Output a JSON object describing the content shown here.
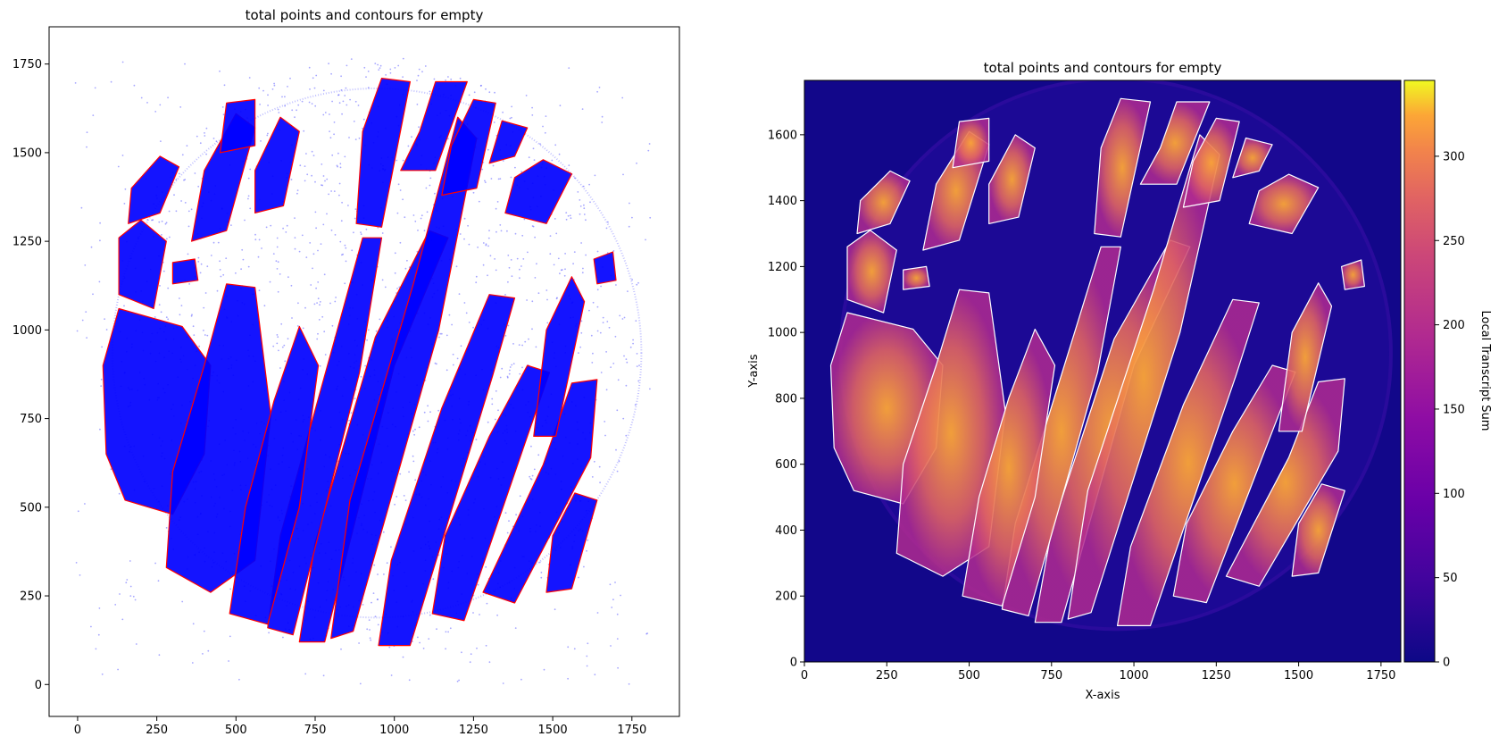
{
  "chart_data": [
    {
      "type": "scatter",
      "title": "total points and contours for empty",
      "xlabel": "",
      "ylabel": "",
      "xlim": [
        -90,
        1900
      ],
      "ylim": [
        -90,
        1855
      ],
      "xticks": [
        0,
        250,
        500,
        750,
        1000,
        1250,
        1500,
        1750
      ],
      "yticks": [
        0,
        250,
        500,
        750,
        1000,
        1250,
        1500,
        1750
      ],
      "grid": false,
      "legend": "none",
      "point_color": "#0000ff",
      "contour_color": "#ff0000",
      "region": {
        "circle_center": [
          945,
          935
        ],
        "circle_radius": 835,
        "x_range": [
          -10,
          1810
        ],
        "y_range": [
          0,
          1770
        ]
      }
    },
    {
      "type": "heatmap",
      "title": "total points and contours for empty",
      "xlabel": "X-axis",
      "ylabel": "Y-axis",
      "xlim": [
        0,
        1810
      ],
      "ylim": [
        0,
        1765
      ],
      "xticks": [
        0,
        250,
        500,
        750,
        1000,
        1250,
        1500,
        1750
      ],
      "yticks": [
        0,
        200,
        400,
        600,
        800,
        1000,
        1200,
        1400,
        1600
      ],
      "colormap": "plasma",
      "colorbar": {
        "label": "Local Transcript Sum",
        "range": [
          0,
          345
        ],
        "ticks": [
          0,
          50,
          100,
          150,
          200,
          250,
          300
        ]
      },
      "contour_color": "#ffffff",
      "grid": false,
      "legend": "none"
    }
  ]
}
